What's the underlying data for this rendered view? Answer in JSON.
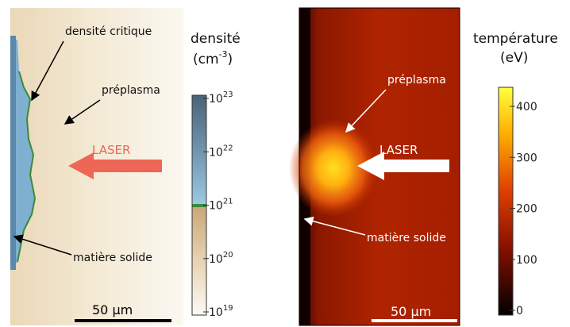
{
  "density_panel": {
    "labels": {
      "critical_density": "densité critique",
      "preplasma": "préplasma",
      "laser": "LASER",
      "solid": "matière solide"
    },
    "scale_bar": "50 μm",
    "colorbar": {
      "title": "densité",
      "unit_base": "(cm",
      "unit_exp": "-3",
      "unit_close": ")",
      "ticks": [
        {
          "base": "10",
          "exp": "23"
        },
        {
          "base": "10",
          "exp": "22"
        },
        {
          "base": "10",
          "exp": "21"
        },
        {
          "base": "10",
          "exp": "20"
        },
        {
          "base": "10",
          "exp": "19"
        }
      ]
    }
  },
  "temperature_panel": {
    "labels": {
      "preplasma": "préplasma",
      "laser": "LASER",
      "solid": "matière solide"
    },
    "scale_bar": "50 μm",
    "colorbar": {
      "title": "température",
      "unit": "(eV)",
      "ticks": [
        "400",
        "300",
        "200",
        "100",
        "0"
      ]
    }
  },
  "colors": {
    "laser_arrow_density": "#ee6655",
    "laser_arrow_temperature": "#ffffff",
    "solid_blue": "#7fb0d0",
    "critical_green": "#3a8a3a",
    "temp_background": "#a01c00"
  }
}
